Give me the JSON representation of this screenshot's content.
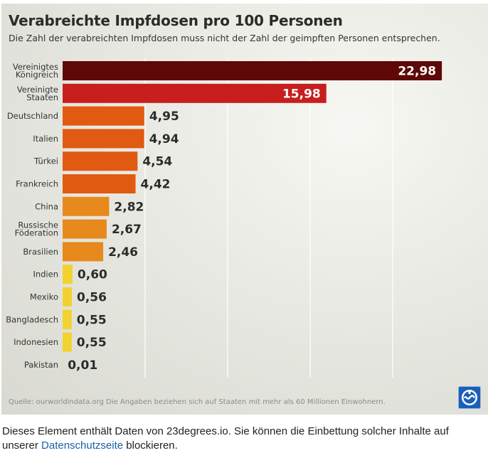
{
  "chart_data": {
    "type": "bar",
    "orientation": "horizontal",
    "title": "Verabreichte Impfdosen pro 100 Personen",
    "subtitle": "Die Zahl der verabreichten Impfdosen muss nicht der Zahl der geimpften Personen entsprechen.",
    "categories": [
      [
        "Vereinigtes",
        "Königreich"
      ],
      [
        "Vereinigte",
        "Staaten"
      ],
      [
        "Deutschland"
      ],
      [
        "Italien"
      ],
      [
        "Türkei"
      ],
      [
        "Frankreich"
      ],
      [
        "China"
      ],
      [
        "Russische",
        "Föderation"
      ],
      [
        "Brasilien"
      ],
      [
        "Indien"
      ],
      [
        "Mexiko"
      ],
      [
        "Bangladesch"
      ],
      [
        "Indonesien"
      ],
      [
        "Pakistan"
      ]
    ],
    "values": [
      22.98,
      15.98,
      4.95,
      4.94,
      4.54,
      4.42,
      2.82,
      2.67,
      2.46,
      0.6,
      0.56,
      0.55,
      0.55,
      0.01
    ],
    "value_labels": [
      "22,98",
      "15,98",
      "4,95",
      "4,94",
      "4,54",
      "4,42",
      "2,82",
      "2,67",
      "2,46",
      "0,60",
      "0,56",
      "0,55",
      "0,55",
      "0,01"
    ],
    "colors": [
      "#5e0808",
      "#c81e1e",
      "#e05a12",
      "#e05a12",
      "#e05a12",
      "#e05a12",
      "#e8891d",
      "#e8891d",
      "#e8891d",
      "#f2d22e",
      "#f2d22e",
      "#f2d22e",
      "#f2d22e",
      "#f2d22e"
    ],
    "xlim": [
      0,
      25
    ],
    "gridlines": [
      5,
      10,
      15,
      20
    ],
    "xlabel": "",
    "ylabel": ""
  },
  "source_text": "Quelle: ourworldindata.org Die Angaben beziehen sich auf Staaten mit mehr als 60 Millionen Einwohnern.",
  "logo_name": "tagesschau-logo-icon",
  "footer": {
    "text_before": "Dieses Element enthält Daten von 23degrees.io. Sie können die Einbettung solcher Inhalte auf unserer ",
    "link_label": "Datenschutzseite",
    "text_after": " blockieren."
  }
}
